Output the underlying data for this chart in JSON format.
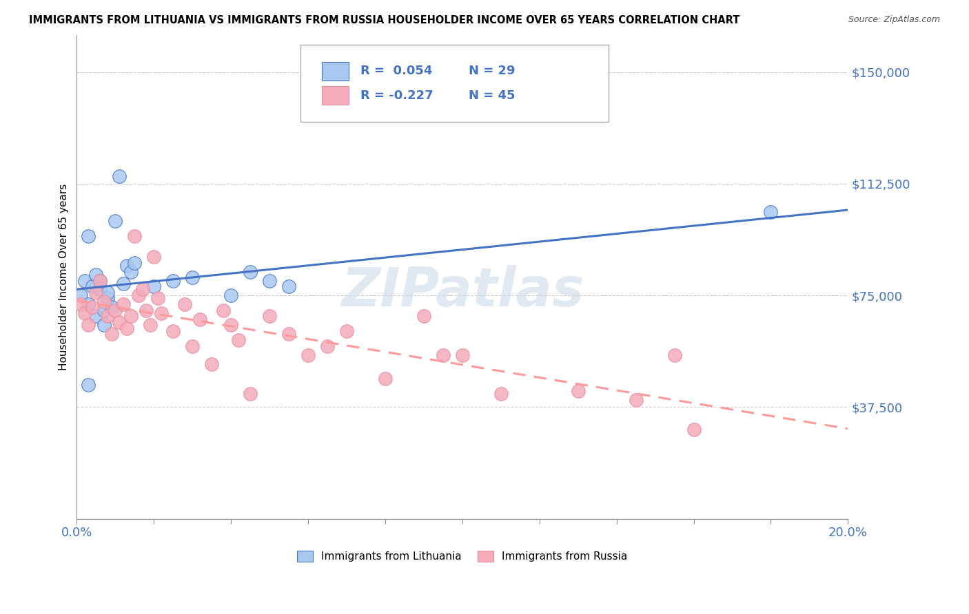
{
  "title": "IMMIGRANTS FROM LITHUANIA VS IMMIGRANTS FROM RUSSIA HOUSEHOLDER INCOME OVER 65 YEARS CORRELATION CHART",
  "source": "Source: ZipAtlas.com",
  "ylabel": "Householder Income Over 65 years",
  "xlim": [
    0.0,
    0.2
  ],
  "ylim": [
    0,
    162500
  ],
  "yticks": [
    0,
    37500,
    75000,
    112500,
    150000
  ],
  "ytick_labels": [
    "",
    "$37,500",
    "$75,000",
    "$112,500",
    "$150,000"
  ],
  "xticks": [
    0.0,
    0.02,
    0.04,
    0.06,
    0.08,
    0.1,
    0.12,
    0.14,
    0.16,
    0.18,
    0.2
  ],
  "color_lithuania": "#A8C8F0",
  "color_russia": "#F4ABBA",
  "line_color_lithuania": "#4472C4",
  "line_color_russia": "#FF9999",
  "legend_R_lith": "R =  0.054",
  "legend_N_lith": "N = 29",
  "legend_R_russ": "R = -0.227",
  "legend_N_russ": "N = 45",
  "watermark": "ZIPatlas",
  "lith_label": "Immigrants from Lithuania",
  "russ_label": "Immigrants from Russia",
  "lithuania_x": [
    0.001,
    0.002,
    0.003,
    0.003,
    0.004,
    0.005,
    0.005,
    0.006,
    0.006,
    0.007,
    0.007,
    0.008,
    0.008,
    0.009,
    0.01,
    0.011,
    0.012,
    0.013,
    0.014,
    0.015,
    0.02,
    0.025,
    0.03,
    0.04,
    0.045,
    0.05,
    0.055,
    0.18,
    0.003
  ],
  "lithuania_y": [
    75000,
    80000,
    72000,
    95000,
    78000,
    82000,
    68000,
    77000,
    80000,
    70000,
    65000,
    74000,
    76000,
    71000,
    100000,
    115000,
    79000,
    85000,
    83000,
    86000,
    78000,
    80000,
    81000,
    75000,
    83000,
    80000,
    78000,
    103000,
    45000
  ],
  "russia_x": [
    0.001,
    0.002,
    0.003,
    0.004,
    0.005,
    0.006,
    0.007,
    0.008,
    0.009,
    0.01,
    0.011,
    0.012,
    0.013,
    0.014,
    0.015,
    0.016,
    0.017,
    0.018,
    0.019,
    0.02,
    0.021,
    0.022,
    0.025,
    0.028,
    0.03,
    0.032,
    0.035,
    0.038,
    0.04,
    0.042,
    0.045,
    0.05,
    0.055,
    0.06,
    0.065,
    0.07,
    0.08,
    0.09,
    0.095,
    0.1,
    0.11,
    0.13,
    0.145,
    0.155,
    0.16
  ],
  "russia_y": [
    72000,
    69000,
    65000,
    71000,
    76000,
    80000,
    73000,
    68000,
    62000,
    70000,
    66000,
    72000,
    64000,
    68000,
    95000,
    75000,
    77000,
    70000,
    65000,
    88000,
    74000,
    69000,
    63000,
    72000,
    58000,
    67000,
    52000,
    70000,
    65000,
    60000,
    42000,
    68000,
    62000,
    55000,
    58000,
    63000,
    47000,
    68000,
    55000,
    55000,
    42000,
    43000,
    40000,
    55000,
    30000
  ]
}
